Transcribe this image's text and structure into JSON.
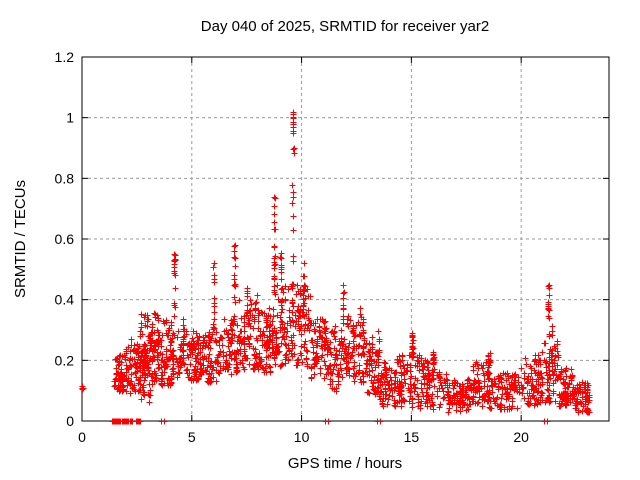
{
  "chart_data": {
    "type": "scatter",
    "title": "Day 040 of 2025, SRMTID for receiver yar2",
    "xlabel": "GPS time / hours",
    "ylabel": "SRMTID / TECUs",
    "xlim": [
      0,
      24
    ],
    "ylim": [
      0,
      1.2
    ],
    "xticks": [
      0,
      5,
      10,
      15,
      20
    ],
    "yticks": [
      0,
      0.2,
      0.4,
      0.6,
      0.8,
      1,
      1.2
    ],
    "grid": true,
    "grid_color": "#9b9b9b",
    "marker": {
      "shape": "plus",
      "color": "#ff0000",
      "size": 7
    },
    "seed": 2025040,
    "notable_points": [
      [
        0,
        0.11
      ],
      [
        4.2,
        0.55
      ],
      [
        6.0,
        0.52
      ],
      [
        6.95,
        0.58
      ],
      [
        8.75,
        0.74
      ],
      [
        9.6,
        1.02
      ],
      [
        9.65,
        0.9
      ],
      [
        10.1,
        0.52
      ],
      [
        11.9,
        0.45
      ],
      [
        15.05,
        0.29
      ],
      [
        21.25,
        0.45
      ]
    ],
    "points_extra": [
      [
        0,
        0.105
      ],
      [
        0,
        0.115
      ],
      [
        0.03,
        0.11
      ]
    ],
    "bands": [
      [
        1.45,
        1.95,
        0.1,
        0.22,
        40
      ],
      [
        1.95,
        2.6,
        0.09,
        0.26,
        60
      ],
      [
        2.6,
        3.1,
        0.05,
        0.24,
        55
      ],
      [
        2.65,
        3.5,
        0.2,
        0.36,
        40
      ],
      [
        3.1,
        3.65,
        0.12,
        0.27,
        40
      ],
      [
        3.65,
        4.15,
        0.12,
        0.33,
        45
      ],
      [
        4.3,
        5.3,
        0.13,
        0.3,
        70
      ],
      [
        5.3,
        6.3,
        0.13,
        0.3,
        70
      ],
      [
        6.3,
        7.1,
        0.15,
        0.34,
        55
      ],
      [
        7.1,
        8.1,
        0.17,
        0.4,
        75
      ],
      [
        8.1,
        8.7,
        0.16,
        0.36,
        50
      ],
      [
        8.7,
        9.5,
        0.18,
        0.45,
        60
      ],
      [
        9.5,
        10.4,
        0.18,
        0.46,
        70
      ],
      [
        10.4,
        11.1,
        0.13,
        0.34,
        55
      ],
      [
        11.1,
        12.0,
        0.1,
        0.31,
        60
      ],
      [
        12.0,
        12.8,
        0.13,
        0.36,
        60
      ],
      [
        12.8,
        13.5,
        0.09,
        0.28,
        50
      ],
      [
        13.5,
        14.3,
        0.05,
        0.18,
        50
      ],
      [
        14.3,
        15.4,
        0.04,
        0.22,
        70
      ],
      [
        15.4,
        16.4,
        0.04,
        0.21,
        65
      ],
      [
        16.4,
        17.7,
        0.03,
        0.14,
        75
      ],
      [
        17.7,
        18.9,
        0.04,
        0.2,
        70
      ],
      [
        18.9,
        19.9,
        0.04,
        0.16,
        60
      ],
      [
        19.9,
        20.9,
        0.05,
        0.21,
        65
      ],
      [
        20.9,
        21.7,
        0.06,
        0.26,
        50
      ],
      [
        21.7,
        22.4,
        0.05,
        0.18,
        55
      ],
      [
        22.4,
        23.1,
        0.03,
        0.13,
        50
      ]
    ],
    "spikes": [
      [
        3.45,
        0.25,
        0.37,
        8
      ],
      [
        4.2,
        0.28,
        0.55,
        16
      ],
      [
        4.6,
        0.2,
        0.37,
        9
      ],
      [
        6.0,
        0.3,
        0.52,
        13
      ],
      [
        6.95,
        0.34,
        0.58,
        13
      ],
      [
        7.5,
        0.3,
        0.45,
        9
      ],
      [
        8.75,
        0.44,
        0.74,
        20
      ],
      [
        9.05,
        0.35,
        0.6,
        9
      ],
      [
        9.6,
        0.5,
        0.8,
        9
      ],
      [
        9.62,
        0.93,
        1.02,
        9
      ],
      [
        9.65,
        0.88,
        0.91,
        2
      ],
      [
        10.1,
        0.34,
        0.52,
        11
      ],
      [
        11.9,
        0.28,
        0.45,
        9
      ],
      [
        12.8,
        0.24,
        0.34,
        11
      ],
      [
        13.5,
        0.2,
        0.3,
        7
      ],
      [
        15.05,
        0.21,
        0.29,
        13
      ],
      [
        16.0,
        0.15,
        0.23,
        9
      ],
      [
        18.5,
        0.14,
        0.22,
        9
      ],
      [
        21.25,
        0.26,
        0.45,
        13
      ],
      [
        21.4,
        0.18,
        0.33,
        9
      ]
    ],
    "zero_runs": [
      [
        1.35,
        1.72
      ],
      [
        1.8,
        1.92
      ],
      [
        1.95,
        2.1
      ],
      [
        2.17,
        2.29
      ],
      [
        2.44,
        2.67
      ]
    ],
    "zero_pairs": [
      [
        3.62,
        3.72
      ],
      [
        11.08,
        11.22
      ],
      [
        13.45,
        13.55
      ],
      [
        21.05,
        21.18
      ]
    ]
  }
}
